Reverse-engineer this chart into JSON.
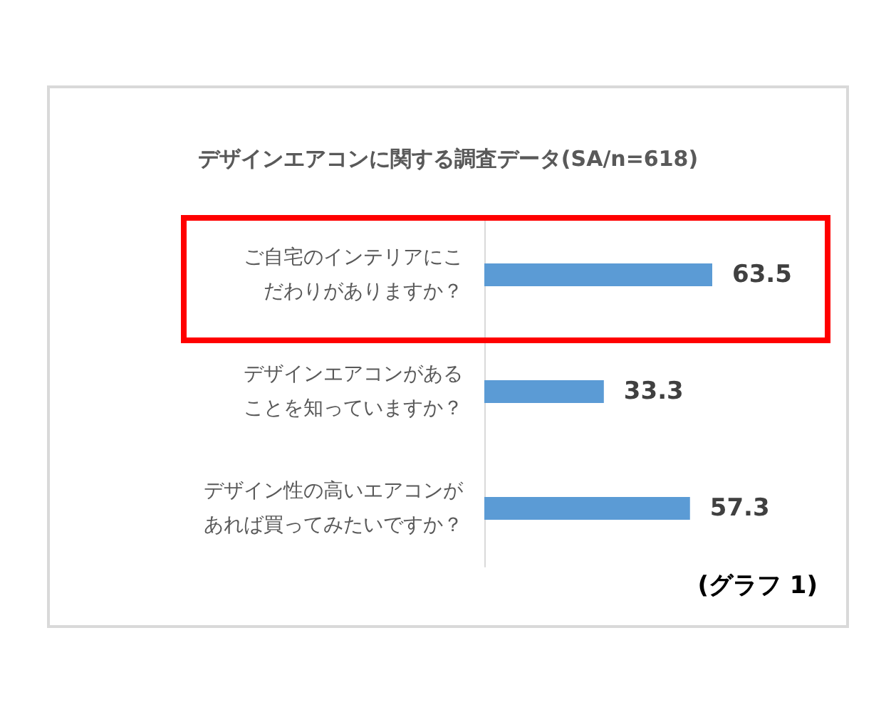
{
  "chart_data": {
    "type": "bar",
    "orientation": "horizontal",
    "title": "デザインエアコンに関する調査データ(SA/n=618)",
    "categories": [
      "ご自宅のインテリアにこだわりがありますか？",
      "デザインエアコンがあることを知っていますか？",
      "デザイン性の高いエアコンがあれば買ってみたいですか？"
    ],
    "values": [
      63.5,
      33.3,
      57.3
    ],
    "color": "#5b9bd5",
    "data_labels": true,
    "tick_labels": "y",
    "annotations": [
      "(グラフ 1)"
    ]
  }
}
